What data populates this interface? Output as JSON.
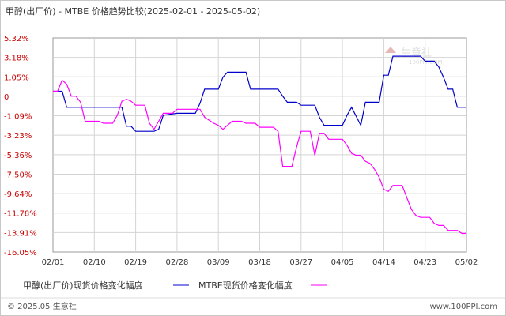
{
  "chart_data": {
    "type": "line",
    "title": "甲醇(出厂价) - MTBE 价格趋势比较(2025-02-01 - 2025-05-02)",
    "y_tick_labels": [
      "5.32%",
      "3.18%",
      "1.05%",
      "0",
      "-1.09%",
      "-3.23%",
      "-5.36%",
      "-7.50%",
      "-9.64%",
      "-11.78%",
      "-13.91%",
      "-16.05%"
    ],
    "y_tick_values": [
      5.32,
      3.18,
      1.05,
      0,
      -1.09,
      -3.23,
      -5.36,
      -7.5,
      -9.64,
      -11.78,
      -13.91,
      -16.05
    ],
    "ylim": [
      -16.05,
      5.32
    ],
    "x_tick_labels": [
      "02/01",
      "02/10",
      "02/19",
      "02/28",
      "03/09",
      "03/18",
      "03/27",
      "04/05",
      "04/14",
      "04/23",
      "05/02"
    ],
    "x_range": [
      "2025-02-01",
      "2025-05-02"
    ],
    "grid": true,
    "series": [
      {
        "name": "甲醇(出厂价)现货价格变化幅度",
        "color": "#0000cc",
        "points": [
          [
            "2025-02-01",
            0
          ],
          [
            "2025-02-03",
            0
          ],
          [
            "2025-02-04",
            -1.6
          ],
          [
            "2025-02-16",
            -1.6
          ],
          [
            "2025-02-17",
            -3.5
          ],
          [
            "2025-02-18",
            -3.5
          ],
          [
            "2025-02-19",
            -4.0
          ],
          [
            "2025-02-23",
            -4.0
          ],
          [
            "2025-02-24",
            -3.8
          ],
          [
            "2025-02-25",
            -2.4
          ],
          [
            "2025-02-28",
            -2.2
          ],
          [
            "2025-03-04",
            -2.2
          ],
          [
            "2025-03-05",
            -1.2
          ],
          [
            "2025-03-06",
            0.2
          ],
          [
            "2025-03-09",
            0.2
          ],
          [
            "2025-03-10",
            1.4
          ],
          [
            "2025-03-11",
            1.9
          ],
          [
            "2025-03-15",
            1.9
          ],
          [
            "2025-03-16",
            0.2
          ],
          [
            "2025-03-22",
            0.2
          ],
          [
            "2025-03-23",
            -0.5
          ],
          [
            "2025-03-24",
            -1.1
          ],
          [
            "2025-03-26",
            -1.1
          ],
          [
            "2025-03-27",
            -1.4
          ],
          [
            "2025-03-30",
            -1.4
          ],
          [
            "2025-03-31",
            -2.6
          ],
          [
            "2025-04-01",
            -3.4
          ],
          [
            "2025-04-05",
            -3.4
          ],
          [
            "2025-04-06",
            -2.4
          ],
          [
            "2025-04-07",
            -1.6
          ],
          [
            "2025-04-09",
            -3.4
          ],
          [
            "2025-04-10",
            -1.1
          ],
          [
            "2025-04-13",
            -1.1
          ],
          [
            "2025-04-14",
            1.6
          ],
          [
            "2025-04-15",
            1.6
          ],
          [
            "2025-04-16",
            3.5
          ],
          [
            "2025-04-22",
            3.5
          ],
          [
            "2025-04-23",
            3.0
          ],
          [
            "2025-04-25",
            3.0
          ],
          [
            "2025-04-26",
            2.4
          ],
          [
            "2025-04-27",
            1.4
          ],
          [
            "2025-04-28",
            0.2
          ],
          [
            "2025-04-29",
            0.2
          ],
          [
            "2025-04-30",
            -1.6
          ],
          [
            "2025-05-02",
            -1.6
          ]
        ]
      },
      {
        "name": "MTBE现货价格变化幅度",
        "color": "#ff00ff",
        "points": [
          [
            "2025-02-01",
            0
          ],
          [
            "2025-02-02",
            0
          ],
          [
            "2025-02-03",
            1.1
          ],
          [
            "2025-02-04",
            0.7
          ],
          [
            "2025-02-05",
            -0.5
          ],
          [
            "2025-02-06",
            -0.5
          ],
          [
            "2025-02-07",
            -1.1
          ],
          [
            "2025-02-08",
            -3.0
          ],
          [
            "2025-02-11",
            -3.0
          ],
          [
            "2025-02-12",
            -3.2
          ],
          [
            "2025-02-14",
            -3.2
          ],
          [
            "2025-02-15",
            -2.4
          ],
          [
            "2025-02-16",
            -1.0
          ],
          [
            "2025-02-17",
            -0.8
          ],
          [
            "2025-02-18",
            -1.0
          ],
          [
            "2025-02-19",
            -1.4
          ],
          [
            "2025-02-21",
            -1.4
          ],
          [
            "2025-02-22",
            -3.2
          ],
          [
            "2025-02-23",
            -3.8
          ],
          [
            "2025-02-24",
            -3.0
          ],
          [
            "2025-02-25",
            -2.2
          ],
          [
            "2025-02-27",
            -2.2
          ],
          [
            "2025-02-28",
            -1.8
          ],
          [
            "2025-03-05",
            -1.8
          ],
          [
            "2025-03-06",
            -2.6
          ],
          [
            "2025-03-08",
            -3.2
          ],
          [
            "2025-03-09",
            -3.4
          ],
          [
            "2025-03-10",
            -3.8
          ],
          [
            "2025-03-11",
            -3.4
          ],
          [
            "2025-03-12",
            -3.0
          ],
          [
            "2025-03-14",
            -3.0
          ],
          [
            "2025-03-15",
            -3.2
          ],
          [
            "2025-03-17",
            -3.2
          ],
          [
            "2025-03-18",
            -3.6
          ],
          [
            "2025-03-21",
            -3.6
          ],
          [
            "2025-03-22",
            -4.0
          ],
          [
            "2025-03-23",
            -7.5
          ],
          [
            "2025-03-25",
            -7.5
          ],
          [
            "2025-03-26",
            -5.6
          ],
          [
            "2025-03-27",
            -4.0
          ],
          [
            "2025-03-29",
            -4.0
          ],
          [
            "2025-03-30",
            -6.4
          ],
          [
            "2025-03-31",
            -4.2
          ],
          [
            "2025-04-01",
            -4.2
          ],
          [
            "2025-04-02",
            -4.8
          ],
          [
            "2025-04-05",
            -4.8
          ],
          [
            "2025-04-06",
            -5.4
          ],
          [
            "2025-04-07",
            -6.2
          ],
          [
            "2025-04-08",
            -6.4
          ],
          [
            "2025-04-09",
            -6.4
          ],
          [
            "2025-04-10",
            -7.0
          ],
          [
            "2025-04-11",
            -7.2
          ],
          [
            "2025-04-12",
            -7.8
          ],
          [
            "2025-04-13",
            -8.6
          ],
          [
            "2025-04-14",
            -9.8
          ],
          [
            "2025-04-15",
            -10.0
          ],
          [
            "2025-04-16",
            -9.4
          ],
          [
            "2025-04-18",
            -9.4
          ],
          [
            "2025-04-19",
            -10.6
          ],
          [
            "2025-04-20",
            -11.8
          ],
          [
            "2025-04-21",
            -12.4
          ],
          [
            "2025-04-22",
            -12.6
          ],
          [
            "2025-04-24",
            -12.6
          ],
          [
            "2025-04-25",
            -13.2
          ],
          [
            "2025-04-26",
            -13.4
          ],
          [
            "2025-04-27",
            -13.4
          ],
          [
            "2025-04-28",
            -13.9
          ],
          [
            "2025-04-30",
            -13.9
          ],
          [
            "2025-05-01",
            -14.2
          ],
          [
            "2025-05-02",
            -14.2
          ]
        ]
      }
    ],
    "legend": "bottom-left"
  },
  "watermark": {
    "brand": "生意社",
    "url": "100PPI.COM"
  },
  "footer": {
    "left": "© 2025.05 生意社",
    "right": "www.100PPI.com"
  }
}
